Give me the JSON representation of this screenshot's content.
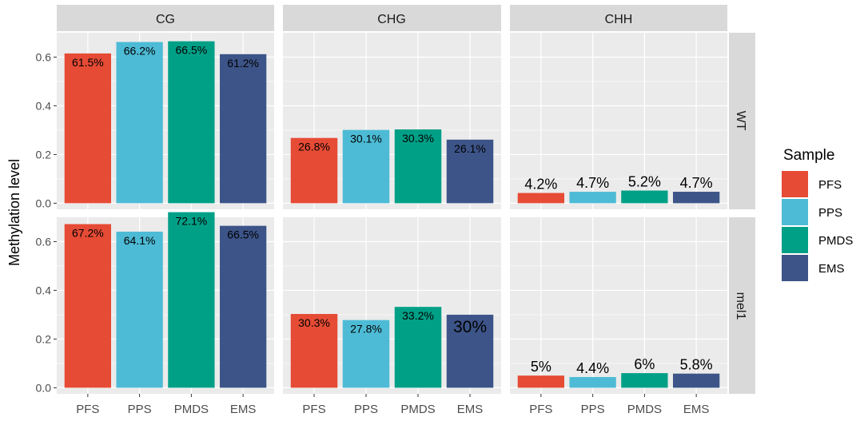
{
  "chart_data": {
    "type": "bar",
    "ylabel": "Methylation level",
    "columns": [
      "CG",
      "CHG",
      "CHH"
    ],
    "rows": [
      "WT",
      "mel1"
    ],
    "categories": [
      "PFS",
      "PPS",
      "PMDS",
      "EMS"
    ],
    "yticks": [
      "0.0",
      "0.2",
      "0.4",
      "0.6"
    ],
    "ylim": [
      -0.025,
      0.7
    ],
    "legend": {
      "title": "Sample",
      "position": "right",
      "items": [
        "PFS",
        "PPS",
        "PMDS",
        "EMS"
      ]
    },
    "colors": {
      "PFS": "#E64B35",
      "PPS": "#4DBBD5",
      "PMDS": "#00A087",
      "EMS": "#3C5488",
      "panel_bg": "#EBEBEB",
      "strip_bg": "#D9D9D9",
      "grid": "#ffffff"
    },
    "panels": [
      {
        "row": "WT",
        "column": "CG",
        "values": [
          0.615,
          0.662,
          0.665,
          0.612
        ],
        "labels": [
          "61.5%",
          "66.2%",
          "66.5%",
          "61.2%"
        ],
        "label_inside": [
          true,
          true,
          true,
          true
        ]
      },
      {
        "row": "WT",
        "column": "CHG",
        "values": [
          0.268,
          0.301,
          0.303,
          0.261
        ],
        "labels": [
          "26.8%",
          "30.1%",
          "30.3%",
          "26.1%"
        ],
        "label_inside": [
          true,
          true,
          true,
          true
        ]
      },
      {
        "row": "WT",
        "column": "CHH",
        "values": [
          0.042,
          0.047,
          0.052,
          0.047
        ],
        "labels": [
          "4.2%",
          "4.7%",
          "5.2%",
          "4.7%"
        ],
        "label_inside": [
          false,
          false,
          false,
          false
        ]
      },
      {
        "row": "mel1",
        "column": "CG",
        "values": [
          0.672,
          0.641,
          0.721,
          0.665
        ],
        "labels": [
          "67.2%",
          "64.1%",
          "72.1%",
          "66.5%"
        ],
        "label_inside": [
          true,
          true,
          true,
          true
        ]
      },
      {
        "row": "mel1",
        "column": "CHG",
        "values": [
          0.303,
          0.278,
          0.332,
          0.3
        ],
        "labels": [
          "30.3%",
          "27.8%",
          "33.2%",
          "30%"
        ],
        "label_inside": [
          true,
          true,
          true,
          true
        ]
      },
      {
        "row": "mel1",
        "column": "CHH",
        "values": [
          0.05,
          0.044,
          0.06,
          0.058
        ],
        "labels": [
          "5%",
          "4.4%",
          "6%",
          "5.8%"
        ],
        "label_inside": [
          false,
          false,
          false,
          false
        ]
      }
    ]
  }
}
